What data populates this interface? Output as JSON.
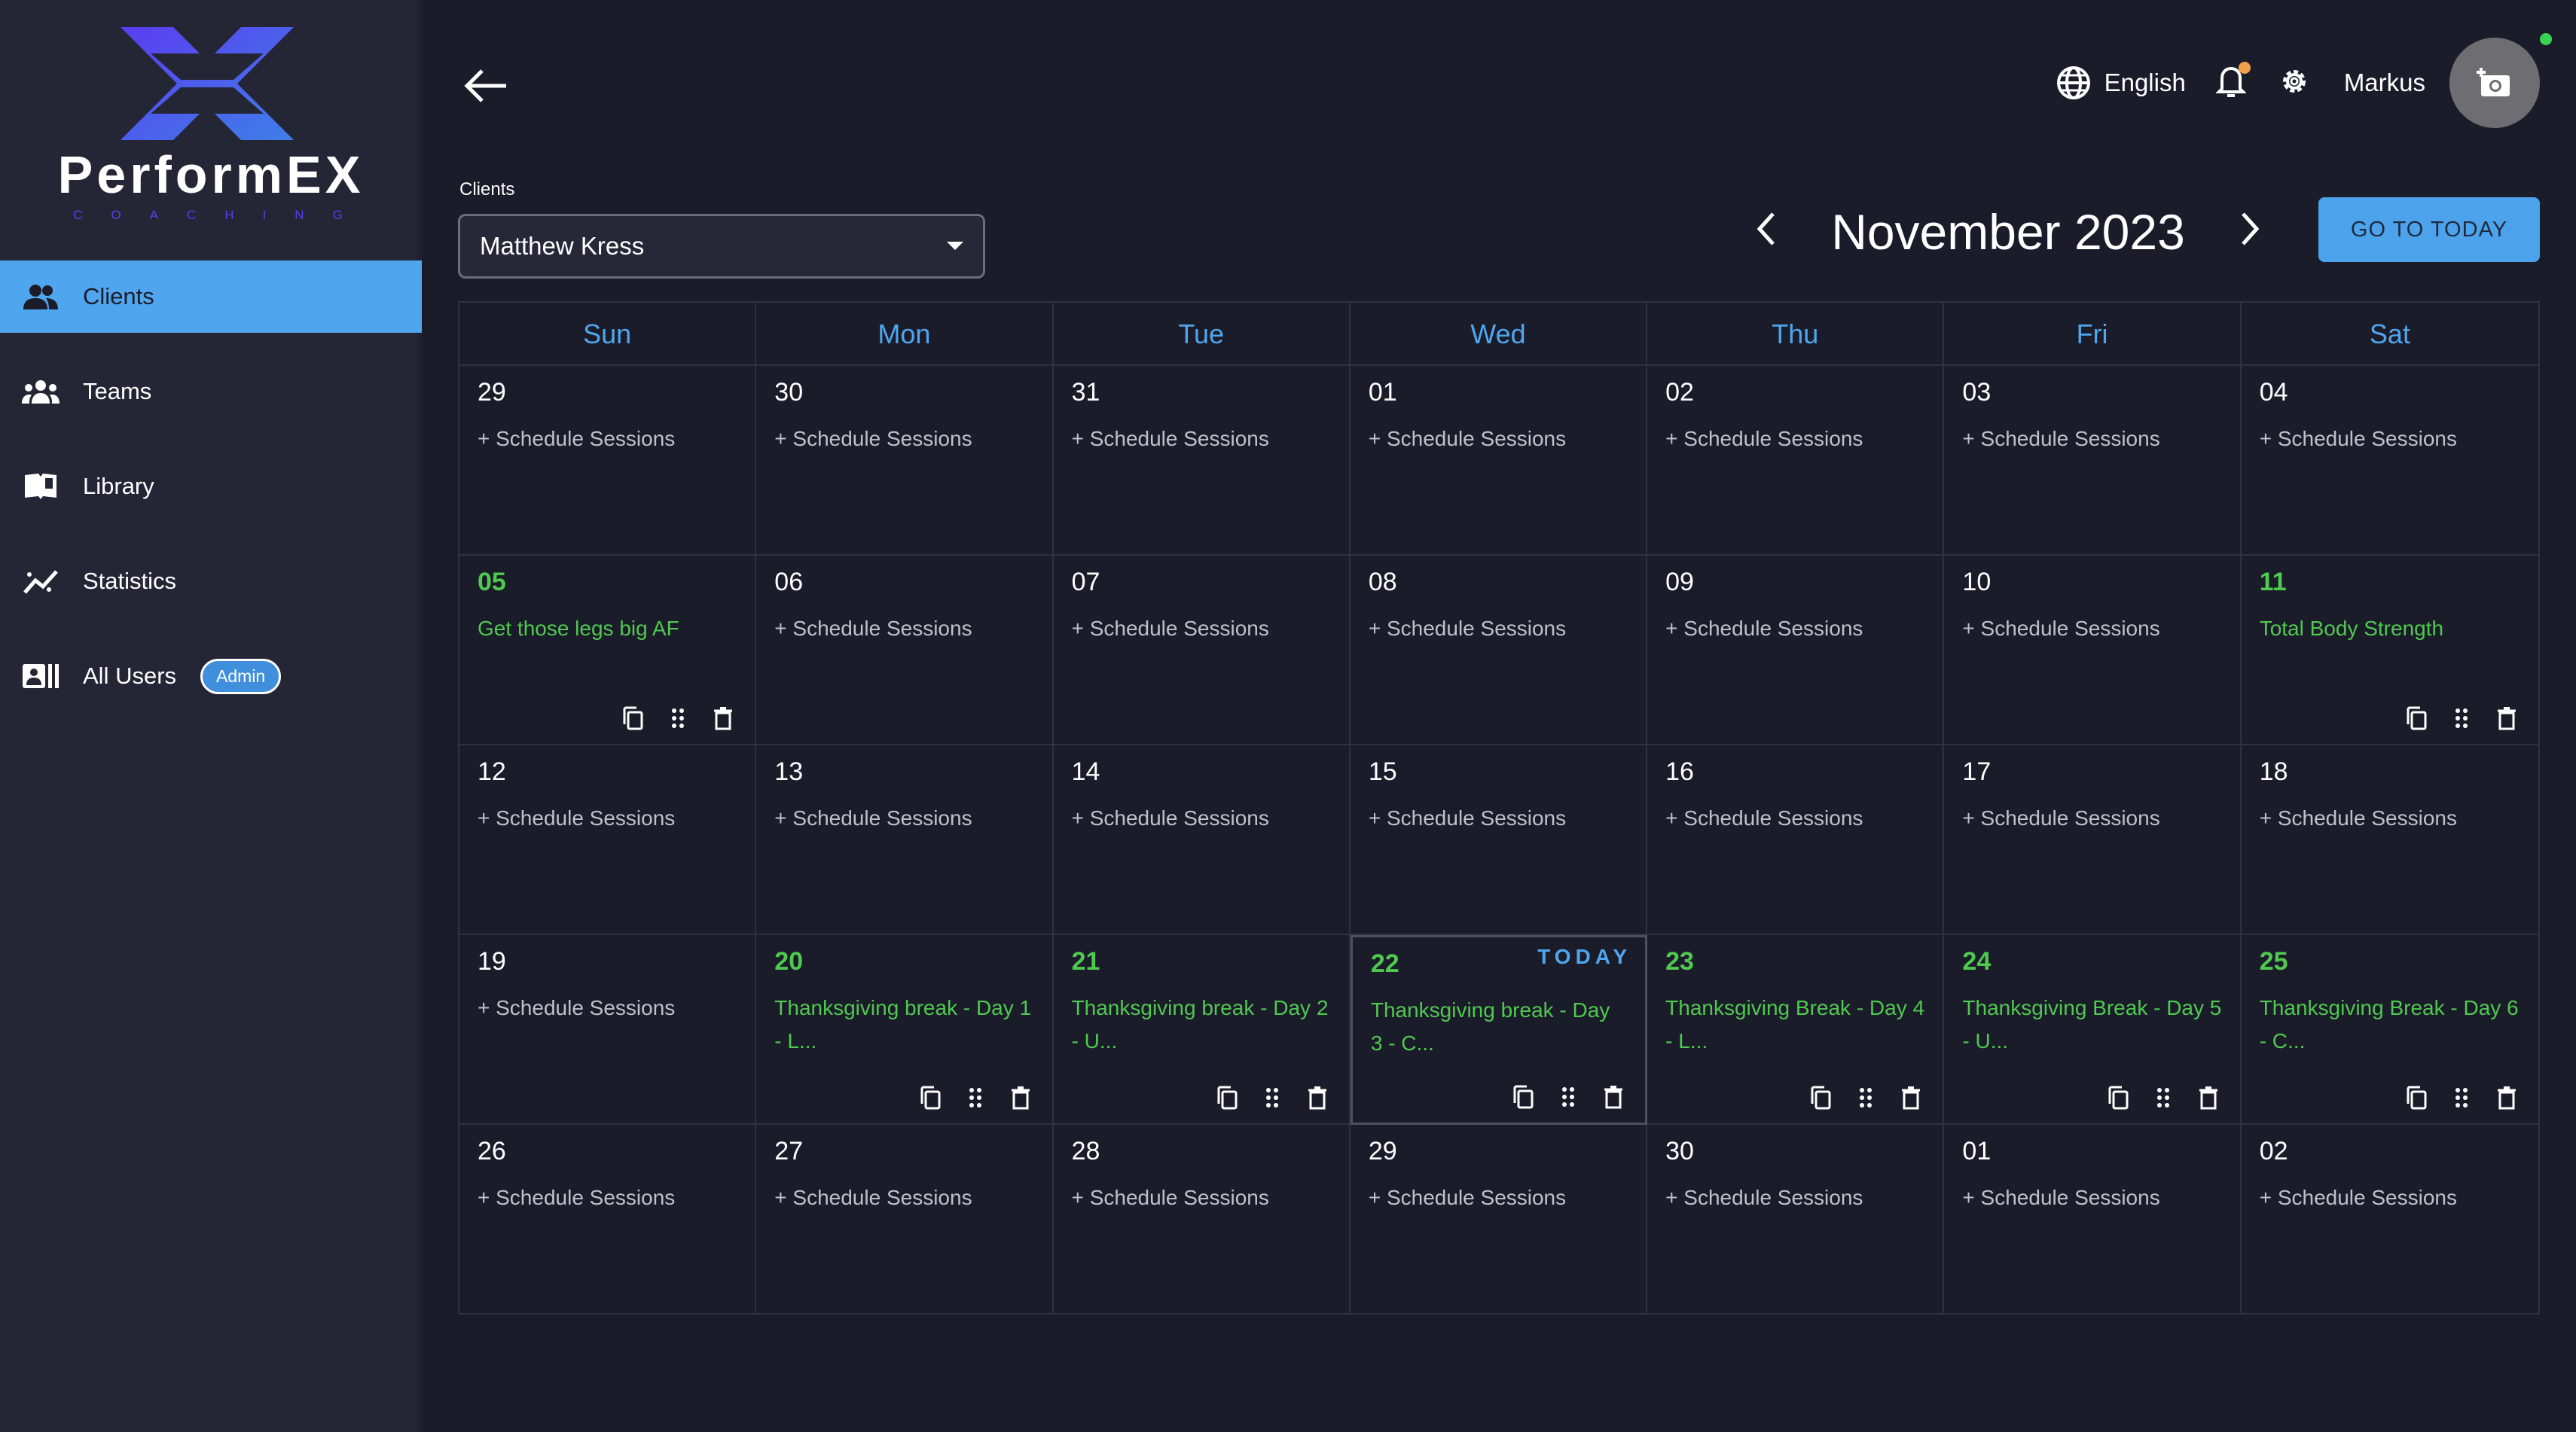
{
  "brand": {
    "name": "PerformEX",
    "sub": "COACHING"
  },
  "sidebar": {
    "items": [
      {
        "label": "Clients",
        "icon": "people-icon",
        "active": true
      },
      {
        "label": "Teams",
        "icon": "groups-icon"
      },
      {
        "label": "Library",
        "icon": "book-icon"
      },
      {
        "label": "Statistics",
        "icon": "stats-icon"
      },
      {
        "label": "All Users",
        "icon": "users-card-icon",
        "badge": "Admin"
      }
    ]
  },
  "header": {
    "language": "English",
    "user": "Markus"
  },
  "filters": {
    "clients_label": "Clients",
    "selected_client": "Matthew Kress"
  },
  "calendar": {
    "month_title": "November 2023",
    "go_today": "GO TO TODAY",
    "weekdays": [
      "Sun",
      "Mon",
      "Tue",
      "Wed",
      "Thu",
      "Fri",
      "Sat"
    ],
    "today_label": "TODAY",
    "schedule_label": "+ Schedule Sessions",
    "cells": [
      {
        "day": "29"
      },
      {
        "day": "30"
      },
      {
        "day": "31"
      },
      {
        "day": "01"
      },
      {
        "day": "02"
      },
      {
        "day": "03"
      },
      {
        "day": "04"
      },
      {
        "day": "05",
        "session": "Get those legs big AF"
      },
      {
        "day": "06"
      },
      {
        "day": "07"
      },
      {
        "day": "08"
      },
      {
        "day": "09"
      },
      {
        "day": "10"
      },
      {
        "day": "11",
        "session": "Total Body Strength"
      },
      {
        "day": "12"
      },
      {
        "day": "13"
      },
      {
        "day": "14"
      },
      {
        "day": "15"
      },
      {
        "day": "16"
      },
      {
        "day": "17"
      },
      {
        "day": "18"
      },
      {
        "day": "19"
      },
      {
        "day": "20",
        "session": "Thanksgiving break - Day 1 - L..."
      },
      {
        "day": "21",
        "session": "Thanksgiving break - Day 2 - U..."
      },
      {
        "day": "22",
        "session": "Thanksgiving break - Day 3 - C...",
        "today": true
      },
      {
        "day": "23",
        "session": "Thanksgiving Break - Day 4 - L..."
      },
      {
        "day": "24",
        "session": "Thanksgiving Break - Day 5 - U..."
      },
      {
        "day": "25",
        "session": "Thanksgiving Break - Day 6 - C..."
      },
      {
        "day": "26"
      },
      {
        "day": "27"
      },
      {
        "day": "28"
      },
      {
        "day": "29"
      },
      {
        "day": "30"
      },
      {
        "day": "01"
      },
      {
        "day": "02"
      }
    ]
  },
  "colors": {
    "accent": "#4fa6ee",
    "session": "#4fc94f",
    "bg": "#1b1c2a",
    "sidebar": "#252635"
  }
}
